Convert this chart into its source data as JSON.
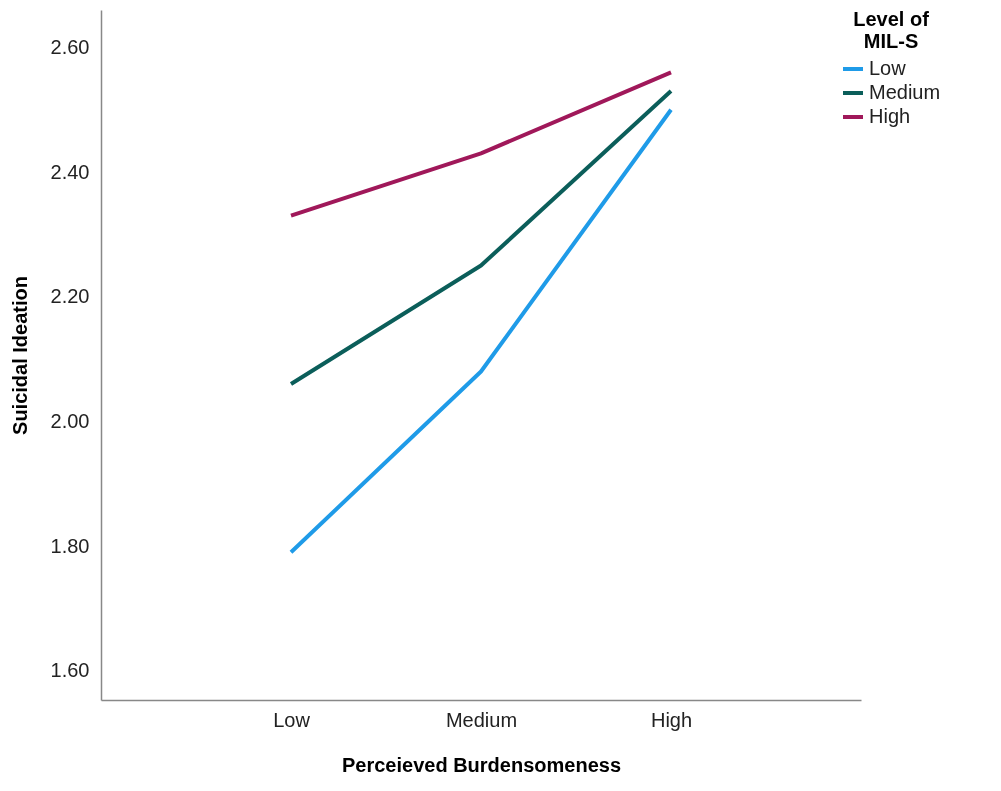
{
  "chart_data": {
    "type": "line",
    "xlabel": "Perceieved Burdensomeness",
    "ylabel": "Suicidal Ideation",
    "legend_title": "Level of MIL-S",
    "legend": "right",
    "grid": false,
    "marker": "none",
    "line_style": "solid",
    "categories": [
      "Low",
      "Medium",
      "High"
    ],
    "ylim": [
      1.553,
      2.66
    ],
    "yticks": [
      {
        "value": 1.6,
        "label": "1.60"
      },
      {
        "value": 1.8,
        "label": "1.80"
      },
      {
        "value": 2.0,
        "label": "2.00"
      },
      {
        "value": 2.2,
        "label": "2.20"
      },
      {
        "value": 2.4,
        "label": "2.40"
      },
      {
        "value": 2.6,
        "label": "2.60"
      }
    ],
    "series": [
      {
        "name": "Low",
        "color": "#1f9be8",
        "values": [
          1.79,
          2.08,
          2.5
        ]
      },
      {
        "name": "Medium",
        "color": "#0b5e5a",
        "values": [
          2.06,
          2.25,
          2.53
        ]
      },
      {
        "name": "High",
        "color": "#a0185a",
        "values": [
          2.33,
          2.43,
          2.56
        ]
      }
    ]
  }
}
